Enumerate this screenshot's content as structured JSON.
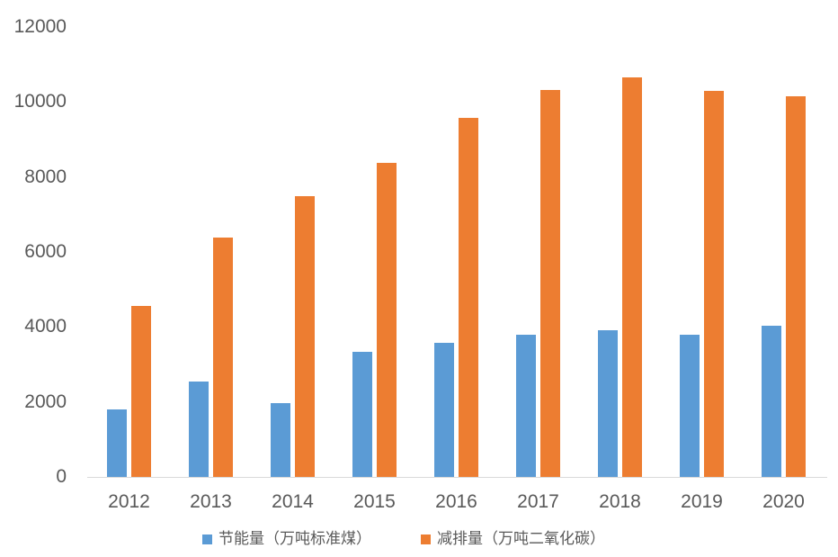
{
  "chart_data": {
    "type": "bar",
    "title": "",
    "xlabel": "",
    "ylabel": "",
    "categories": [
      "2012",
      "2013",
      "2014",
      "2015",
      "2016",
      "2017",
      "2018",
      "2019",
      "2020"
    ],
    "series": [
      {
        "name": "节能量（万吨标准煤）",
        "color": "#5B9BD5",
        "values": [
          1800,
          2540,
          1980,
          3340,
          3570,
          3790,
          3910,
          3790,
          4030
        ]
      },
      {
        "name": "减排量（万吨二氧化碳）",
        "color": "#ED7D31",
        "values": [
          4550,
          6380,
          7480,
          8370,
          9580,
          10320,
          10650,
          10300,
          10150
        ]
      }
    ],
    "ylim": [
      0,
      12000
    ],
    "yticks": [
      0,
      2000,
      4000,
      6000,
      8000,
      10000,
      12000
    ],
    "grid": false,
    "legend_position": "bottom",
    "colors": {
      "text": "#595959",
      "axis_line": "#D9D9D9",
      "background": "#FFFFFF"
    }
  }
}
